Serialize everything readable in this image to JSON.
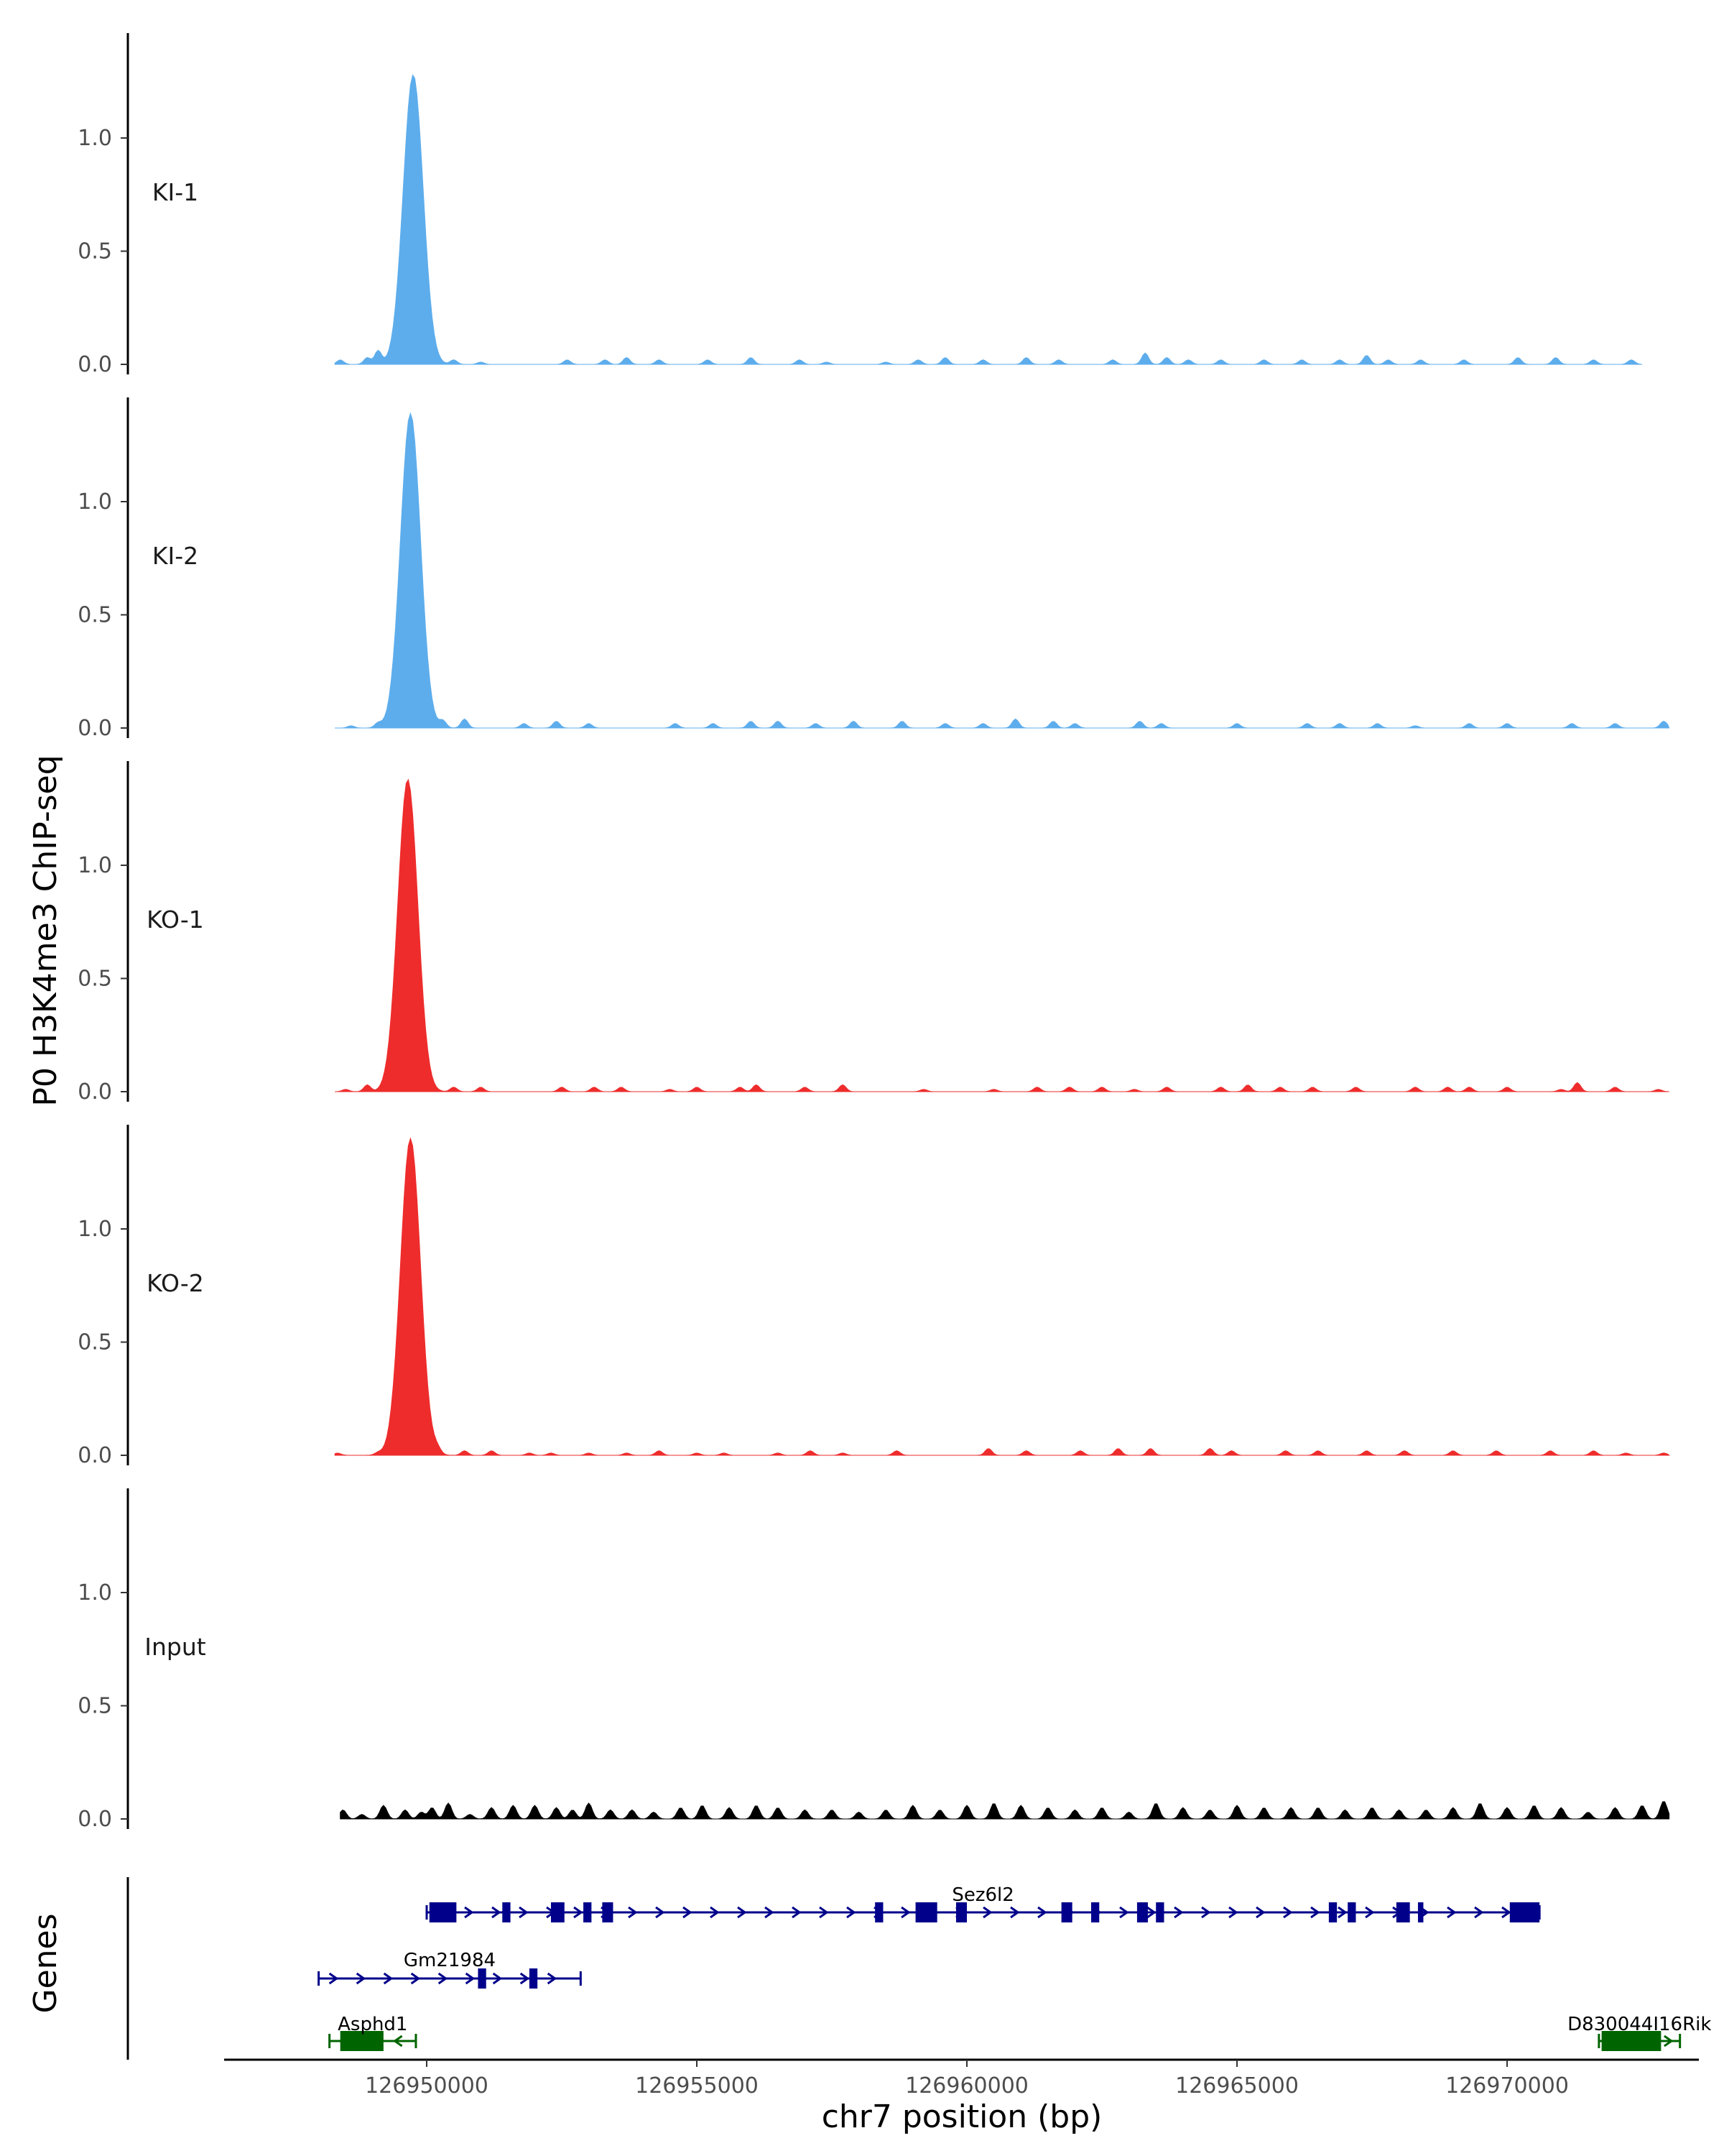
{
  "chart_data": {
    "type": "area",
    "ylabel": "P0 H3K4me3 ChIP-seq",
    "xlabel": "chr7 position (bp)",
    "genes_label": "Genes",
    "xlim": [
      126946250,
      126973550
    ],
    "ylim": [
      0,
      1.45
    ],
    "y_ticks": [
      0.0,
      0.5,
      1.0
    ],
    "y_tick_labels": [
      "0.0",
      "0.5",
      "1.0"
    ],
    "x_ticks": [
      126950000,
      126955000,
      126960000,
      126965000,
      126970000
    ],
    "x_tick_labels": [
      "126950000",
      "126955000",
      "126960000",
      "126965000",
      "126970000"
    ],
    "tracks": [
      {
        "name": "KI-1",
        "color": "#5DADEC",
        "x_start": 126948300,
        "x_end": 126972500,
        "peak_center": 126949750,
        "peak_height": 1.28,
        "noise": [
          [
            126948400,
            0.02
          ],
          [
            126948900,
            0.03
          ],
          [
            126949100,
            0.06
          ],
          [
            126950500,
            0.02
          ],
          [
            126951000,
            0.01
          ],
          [
            126952600,
            0.02
          ],
          [
            126953300,
            0.02
          ],
          [
            126953700,
            0.03
          ],
          [
            126954300,
            0.02
          ],
          [
            126955200,
            0.02
          ],
          [
            126956000,
            0.03
          ],
          [
            126956900,
            0.02
          ],
          [
            126957400,
            0.01
          ],
          [
            126958500,
            0.01
          ],
          [
            126959100,
            0.02
          ],
          [
            126959600,
            0.03
          ],
          [
            126960300,
            0.02
          ],
          [
            126961100,
            0.03
          ],
          [
            126961700,
            0.02
          ],
          [
            126962700,
            0.02
          ],
          [
            126963300,
            0.05
          ],
          [
            126963700,
            0.03
          ],
          [
            126964100,
            0.02
          ],
          [
            126964700,
            0.02
          ],
          [
            126965500,
            0.02
          ],
          [
            126966200,
            0.02
          ],
          [
            126966900,
            0.02
          ],
          [
            126967400,
            0.04
          ],
          [
            126967800,
            0.02
          ],
          [
            126968400,
            0.02
          ],
          [
            126969200,
            0.02
          ],
          [
            126970200,
            0.03
          ],
          [
            126970900,
            0.03
          ],
          [
            126971600,
            0.02
          ],
          [
            126972300,
            0.02
          ]
        ]
      },
      {
        "name": "KI-2",
        "color": "#5DADEC",
        "x_start": 126948300,
        "x_end": 126973000,
        "peak_center": 126949700,
        "peak_height": 1.39,
        "noise": [
          [
            126948600,
            0.01
          ],
          [
            126949100,
            0.02
          ],
          [
            126950300,
            0.03
          ],
          [
            126950700,
            0.04
          ],
          [
            126951800,
            0.02
          ],
          [
            126952400,
            0.03
          ],
          [
            126953000,
            0.02
          ],
          [
            126954600,
            0.02
          ],
          [
            126955300,
            0.02
          ],
          [
            126956000,
            0.03
          ],
          [
            126956500,
            0.03
          ],
          [
            126957200,
            0.02
          ],
          [
            126957900,
            0.03
          ],
          [
            126958800,
            0.03
          ],
          [
            126959600,
            0.02
          ],
          [
            126960300,
            0.02
          ],
          [
            126960900,
            0.04
          ],
          [
            126961600,
            0.03
          ],
          [
            126962000,
            0.02
          ],
          [
            126963200,
            0.03
          ],
          [
            126963600,
            0.02
          ],
          [
            126965000,
            0.02
          ],
          [
            126966300,
            0.02
          ],
          [
            126966900,
            0.02
          ],
          [
            126967600,
            0.02
          ],
          [
            126968300,
            0.01
          ],
          [
            126969300,
            0.02
          ],
          [
            126970000,
            0.02
          ],
          [
            126971200,
            0.02
          ],
          [
            126972000,
            0.02
          ],
          [
            126972900,
            0.03
          ]
        ]
      },
      {
        "name": "KO-1",
        "color": "#EE2C2C",
        "x_start": 126948300,
        "x_end": 126973000,
        "peak_center": 126949650,
        "peak_height": 1.38,
        "noise": [
          [
            126948500,
            0.01
          ],
          [
            126948900,
            0.03
          ],
          [
            126950500,
            0.02
          ],
          [
            126951000,
            0.02
          ],
          [
            126952500,
            0.02
          ],
          [
            126953100,
            0.02
          ],
          [
            126953600,
            0.02
          ],
          [
            126954500,
            0.01
          ],
          [
            126955000,
            0.02
          ],
          [
            126955800,
            0.02
          ],
          [
            126956100,
            0.03
          ],
          [
            126957000,
            0.02
          ],
          [
            126957700,
            0.03
          ],
          [
            126959200,
            0.01
          ],
          [
            126960500,
            0.01
          ],
          [
            126961300,
            0.02
          ],
          [
            126961900,
            0.02
          ],
          [
            126962500,
            0.02
          ],
          [
            126963100,
            0.01
          ],
          [
            126963700,
            0.02
          ],
          [
            126964700,
            0.02
          ],
          [
            126965200,
            0.03
          ],
          [
            126965800,
            0.02
          ],
          [
            126966400,
            0.02
          ],
          [
            126967200,
            0.02
          ],
          [
            126968300,
            0.02
          ],
          [
            126968900,
            0.02
          ],
          [
            126969300,
            0.02
          ],
          [
            126970000,
            0.02
          ],
          [
            126971000,
            0.01
          ],
          [
            126971300,
            0.04
          ],
          [
            126972000,
            0.02
          ],
          [
            126972800,
            0.01
          ]
        ]
      },
      {
        "name": "KO-2",
        "color": "#EE2C2C",
        "x_start": 126948300,
        "x_end": 126973000,
        "peak_center": 126949700,
        "peak_height": 1.4,
        "noise": [
          [
            126948350,
            0.01
          ],
          [
            126949100,
            0.01
          ],
          [
            126950200,
            0.02
          ],
          [
            126950700,
            0.02
          ],
          [
            126951200,
            0.02
          ],
          [
            126951900,
            0.01
          ],
          [
            126952300,
            0.01
          ],
          [
            126953000,
            0.01
          ],
          [
            126953700,
            0.01
          ],
          [
            126954300,
            0.02
          ],
          [
            126955000,
            0.01
          ],
          [
            126955500,
            0.01
          ],
          [
            126956500,
            0.01
          ],
          [
            126957100,
            0.02
          ],
          [
            126957700,
            0.01
          ],
          [
            126958700,
            0.02
          ],
          [
            126960400,
            0.03
          ],
          [
            126961100,
            0.02
          ],
          [
            126962100,
            0.02
          ],
          [
            126962800,
            0.03
          ],
          [
            126963400,
            0.03
          ],
          [
            126964500,
            0.03
          ],
          [
            126964900,
            0.02
          ],
          [
            126965900,
            0.02
          ],
          [
            126966500,
            0.02
          ],
          [
            126967400,
            0.02
          ],
          [
            126968100,
            0.02
          ],
          [
            126969000,
            0.02
          ],
          [
            126969800,
            0.02
          ],
          [
            126970800,
            0.02
          ],
          [
            126971600,
            0.02
          ],
          [
            126972200,
            0.01
          ],
          [
            126972900,
            0.01
          ]
        ]
      },
      {
        "name": "Input",
        "color": "#000000",
        "x_start": 126948400,
        "x_end": 126973000,
        "peak_center": null,
        "peak_height": 0,
        "noise": [
          [
            126948450,
            0.04
          ],
          [
            126948800,
            0.02
          ],
          [
            126949200,
            0.06
          ],
          [
            126949600,
            0.04
          ],
          [
            126949900,
            0.03
          ],
          [
            126950100,
            0.05
          ],
          [
            126950400,
            0.07
          ],
          [
            126950800,
            0.02
          ],
          [
            126951200,
            0.05
          ],
          [
            126951600,
            0.06
          ],
          [
            126952000,
            0.06
          ],
          [
            126952400,
            0.05
          ],
          [
            126952700,
            0.04
          ],
          [
            126953000,
            0.07
          ],
          [
            126953400,
            0.04
          ],
          [
            126953800,
            0.04
          ],
          [
            126954200,
            0.03
          ],
          [
            126954700,
            0.05
          ],
          [
            126955100,
            0.06
          ],
          [
            126955600,
            0.05
          ],
          [
            126956100,
            0.06
          ],
          [
            126956500,
            0.05
          ],
          [
            126957000,
            0.04
          ],
          [
            126957500,
            0.04
          ],
          [
            126958000,
            0.03
          ],
          [
            126958500,
            0.04
          ],
          [
            126959000,
            0.06
          ],
          [
            126959500,
            0.04
          ],
          [
            126960000,
            0.06
          ],
          [
            126960500,
            0.07
          ],
          [
            126961000,
            0.06
          ],
          [
            126961500,
            0.05
          ],
          [
            126962000,
            0.04
          ],
          [
            126962500,
            0.05
          ],
          [
            126963000,
            0.03
          ],
          [
            126963500,
            0.07
          ],
          [
            126964000,
            0.05
          ],
          [
            126964500,
            0.04
          ],
          [
            126965000,
            0.06
          ],
          [
            126965500,
            0.05
          ],
          [
            126966000,
            0.05
          ],
          [
            126966500,
            0.05
          ],
          [
            126967000,
            0.04
          ],
          [
            126967500,
            0.05
          ],
          [
            126968000,
            0.04
          ],
          [
            126968500,
            0.04
          ],
          [
            126969000,
            0.05
          ],
          [
            126969500,
            0.07
          ],
          [
            126970000,
            0.05
          ],
          [
            126970500,
            0.06
          ],
          [
            126971000,
            0.05
          ],
          [
            126971500,
            0.03
          ],
          [
            126972000,
            0.05
          ],
          [
            126972500,
            0.06
          ],
          [
            126972900,
            0.08
          ]
        ]
      }
    ],
    "genes": [
      {
        "name": "Sez6l2",
        "strand": "+",
        "color": "#00008B",
        "start": 126950000,
        "end": 126970600,
        "row": 1,
        "exons": [
          [
            126950050,
            126950550
          ],
          [
            126951400,
            126951550
          ],
          [
            126952300,
            126952550
          ],
          [
            126952900,
            126953050
          ],
          [
            126953250,
            126953450
          ],
          [
            126958300,
            126958450
          ],
          [
            126959050,
            126959450
          ],
          [
            126959800,
            126960000
          ],
          [
            126961750,
            126961950
          ],
          [
            126962300,
            126962450
          ],
          [
            126963150,
            126963350
          ],
          [
            126963500,
            126963650
          ],
          [
            126966700,
            126966850
          ],
          [
            126967050,
            126967200
          ],
          [
            126967950,
            126968200
          ],
          [
            126968350,
            126968450
          ],
          [
            126970050,
            126970600
          ]
        ]
      },
      {
        "name": "Gm21984",
        "strand": "+",
        "color": "#00008B",
        "start": 126948000,
        "end": 126952850,
        "row": 2,
        "exons": [
          [
            126950950,
            126951100
          ],
          [
            126951900,
            126952050
          ]
        ]
      },
      {
        "name": "Asphd1",
        "strand": "-",
        "color": "#006400",
        "start": 126948200,
        "end": 126949800,
        "row": 3,
        "exons": [
          [
            126948400,
            126949200
          ]
        ]
      },
      {
        "name": "D830044I16Rik",
        "strand": "+",
        "color": "#006400",
        "start": 126971700,
        "end": 126973200,
        "row": 3,
        "exons": [
          [
            126971750,
            126972850
          ]
        ]
      }
    ]
  }
}
